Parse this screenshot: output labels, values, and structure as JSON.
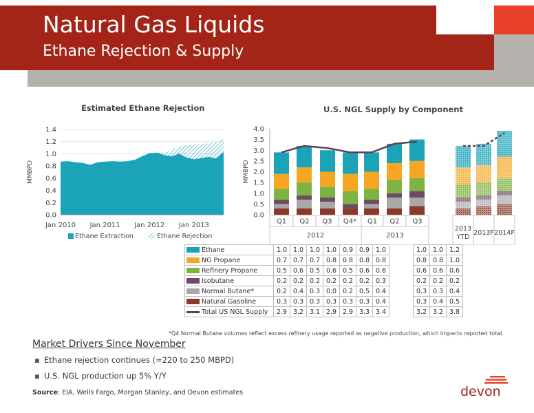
{
  "header": {
    "title": "Natural Gas Liquids",
    "subtitle": "Ethane Rejection & Supply"
  },
  "colors": {
    "brand_red": "#a42418",
    "accent_orange": "#e8412a",
    "gray": "#b5b1ac",
    "ethane": "#1ba3b8",
    "ng_propane": "#f5a623",
    "refinery_propane": "#7cb342",
    "isobutane": "#6d4c5e",
    "normal_butane": "#a8a8a8",
    "natural_gasoline": "#8b3a2a",
    "total_line": "#5b4150"
  },
  "chart_data": [
    {
      "type": "area",
      "title": "Estimated Ethane Rejection",
      "ylabel": "MMBPD",
      "xlabel": "",
      "ylim": [
        0,
        1.4
      ],
      "yticks": [
        "0.0",
        "0.2",
        "0.4",
        "0.6",
        "0.8",
        "1.0",
        "1.2",
        "1.4"
      ],
      "xticks": [
        "Jan 2010",
        "Jan 2011",
        "Jan 2012",
        "Jan 2013"
      ],
      "x_range_months": [
        0,
        44
      ],
      "grid": true,
      "legend_position": "bottom",
      "series": [
        {
          "name": "Ethane Extraction",
          "x": [
            0,
            2,
            4,
            6,
            8,
            10,
            12,
            14,
            16,
            18,
            20,
            22,
            24,
            26,
            28,
            30,
            32,
            34,
            36,
            38,
            40,
            42,
            44
          ],
          "values": [
            0.87,
            0.88,
            0.86,
            0.85,
            0.82,
            0.86,
            0.87,
            0.88,
            0.87,
            0.88,
            0.9,
            0.96,
            1.01,
            1.02,
            0.98,
            0.96,
            1.0,
            0.94,
            0.91,
            0.93,
            0.95,
            0.92,
            1.03
          ]
        },
        {
          "name": "Ethane Rejection",
          "x": [
            0,
            2,
            4,
            6,
            8,
            10,
            12,
            14,
            16,
            18,
            20,
            22,
            24,
            26,
            28,
            30,
            32,
            34,
            36,
            38,
            40,
            42,
            44
          ],
          "values": [
            0.87,
            0.88,
            0.86,
            0.85,
            0.82,
            0.86,
            0.87,
            0.88,
            0.87,
            0.88,
            0.9,
            0.96,
            1.01,
            1.02,
            1.02,
            1.06,
            1.12,
            1.14,
            1.15,
            1.16,
            1.17,
            1.19,
            1.24
          ]
        }
      ]
    },
    {
      "type": "bar",
      "title": "U.S. NGL Supply by Component",
      "ylabel": "MMBPD",
      "xlabel": "",
      "ylim": [
        0,
        4.0
      ],
      "yticks": [
        "0.0",
        "0.5",
        "1.0",
        "1.5",
        "2.0",
        "2.5",
        "3.0",
        "3.5",
        "4.0"
      ],
      "categories": [
        "Q1",
        "Q2",
        "Q3",
        "Q4*",
        "Q1",
        "Q2",
        "Q3",
        "2013 YTD",
        "2013F",
        "2014F"
      ],
      "groups": [
        {
          "label": "2012",
          "span": 4
        },
        {
          "label": "2013",
          "span": 3
        }
      ],
      "forecast_categories": [
        "2013 YTD",
        "2013F",
        "2014F"
      ],
      "series": [
        {
          "name": "Natural Gasoline",
          "color_key": "natural_gasoline",
          "values": [
            0.3,
            0.3,
            0.3,
            0.3,
            0.3,
            0.3,
            0.4,
            0.3,
            0.4,
            0.5
          ]
        },
        {
          "name": "Normal Butane*",
          "color_key": "normal_butane",
          "values": [
            0.2,
            0.4,
            0.3,
            0.0,
            0.2,
            0.5,
            0.4,
            0.3,
            0.3,
            0.4
          ]
        },
        {
          "name": "Isobutane",
          "color_key": "isobutane",
          "values": [
            0.2,
            0.2,
            0.2,
            0.2,
            0.2,
            0.2,
            0.3,
            0.2,
            0.2,
            0.2
          ]
        },
        {
          "name": "Refinery Propane",
          "color_key": "refinery_propane",
          "values": [
            0.5,
            0.6,
            0.5,
            0.6,
            0.5,
            0.6,
            0.6,
            0.6,
            0.6,
            0.6
          ]
        },
        {
          "name": "NG Propane",
          "color_key": "ng_propane",
          "values": [
            0.7,
            0.7,
            0.7,
            0.8,
            0.8,
            0.8,
            0.8,
            0.8,
            0.8,
            1.0
          ]
        },
        {
          "name": "Ethane",
          "color_key": "ethane",
          "values": [
            1.0,
            1.0,
            1.0,
            1.0,
            0.9,
            0.9,
            1.0,
            1.0,
            1.0,
            1.2
          ]
        }
      ],
      "total": {
        "name": "Total US NGL Supply",
        "values": [
          2.9,
          3.2,
          3.1,
          2.9,
          2.9,
          3.3,
          3.4,
          3.2,
          3.2,
          3.8
        ]
      },
      "table_rows": [
        {
          "name": "Ethane",
          "color_key": "ethane",
          "cells": [
            "1.0",
            "1.0",
            "1.0",
            "1.0",
            "0.9",
            "0.9",
            "1.0",
            "1.0",
            "1.0",
            "1.2"
          ]
        },
        {
          "name": "NG Propane",
          "color_key": "ng_propane",
          "cells": [
            "0.7",
            "0.7",
            "0.7",
            "0.8",
            "0.8",
            "0.8",
            "0.8",
            "0.8",
            "0.8",
            "1.0"
          ]
        },
        {
          "name": "Refinery Propane",
          "color_key": "refinery_propane",
          "cells": [
            "0.5",
            "0.6",
            "0.5",
            "0.6",
            "0.5",
            "0.6",
            "0.6",
            "0.6",
            "0.6",
            "0.6"
          ]
        },
        {
          "name": "Isobutane",
          "color_key": "isobutane",
          "cells": [
            "0.2",
            "0.2",
            "0.2",
            "0.2",
            "0.2",
            "0.2",
            "0.3",
            "0.2",
            "0.2",
            "0.2"
          ]
        },
        {
          "name": "Normal Butane*",
          "color_key": "normal_butane",
          "cells": [
            "0.2",
            "0.4",
            "0.3",
            "0.0",
            "0.2",
            "0.5",
            "0.4",
            "0.3",
            "0.3",
            "0.4"
          ]
        },
        {
          "name": "Natural Gasoline",
          "color_key": "natural_gasoline",
          "cells": [
            "0.3",
            "0.3",
            "0.3",
            "0.3",
            "0.3",
            "0.3",
            "0.4",
            "0.3",
            "0.4",
            "0.5"
          ]
        },
        {
          "name": "Total US NGL Supply",
          "color_key": "total_line",
          "line": true,
          "cells": [
            "2.9",
            "3.2",
            "3.1",
            "2.9",
            "2.9",
            "3.3",
            "3.4",
            "3.2",
            "3.2",
            "3.8"
          ]
        }
      ]
    }
  ],
  "footnote": "*Q4 Normal Butane volumes reflect excess refinery usage reported as negative production, which impacts reported total.",
  "market_drivers": {
    "heading": "Market Drivers Since November",
    "bullets": [
      "Ethane rejection continues (≈220 to 250 MBPD)",
      "U.S. NGL production up 5% Y/Y"
    ]
  },
  "source": {
    "label": "Source",
    "text": ": EIA, Wells Fargo, Morgan Stanley, and Devon estimates"
  },
  "logo": {
    "text": "devon"
  }
}
